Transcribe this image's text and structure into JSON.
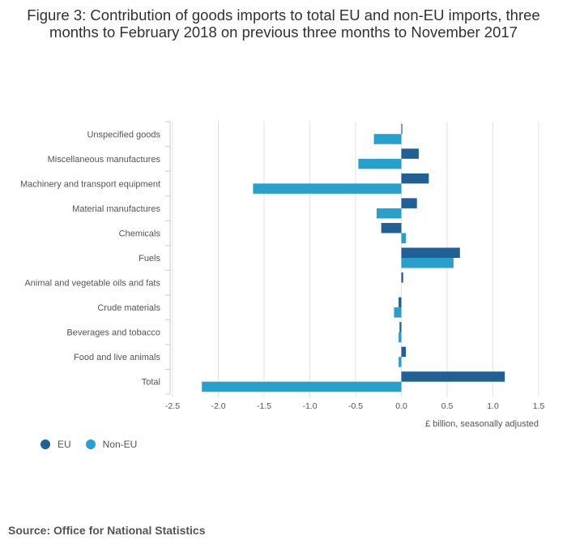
{
  "title": "Figure 3: Contribution of goods imports to total EU and non-EU imports, three months to February 2018 on previous three months to November 2017",
  "source": "Source: Office for National Statistics",
  "chart_data": {
    "type": "bar",
    "orientation": "horizontal",
    "categories": [
      "Unspecified goods",
      "Miscellaneous manufactures",
      "Machinery and transport equipment",
      "Material manufactures",
      "Chemicals",
      "Fuels",
      "Animal and vegetable oils and fats",
      "Crude materials",
      "Beverages and tobacco",
      "Food and live animals",
      "Total"
    ],
    "series": [
      {
        "name": "EU",
        "color": "#206095",
        "values": [
          0.01,
          0.19,
          0.3,
          0.17,
          -0.22,
          0.64,
          0.02,
          -0.03,
          -0.02,
          0.05,
          1.13
        ]
      },
      {
        "name": "Non-EU",
        "color": "#27a0cc",
        "values": [
          -0.3,
          -0.47,
          -1.62,
          -0.27,
          0.05,
          0.57,
          0.0,
          -0.08,
          -0.03,
          -0.03,
          -2.18
        ]
      }
    ],
    "xlim": [
      -2.5,
      1.5
    ],
    "xticks": [
      -2.5,
      -2.0,
      -1.5,
      -1.0,
      -0.5,
      0.0,
      0.5,
      1.0,
      1.5
    ],
    "xtick_labels": [
      "-2.5",
      "-2.0",
      "-1.5",
      "-1.0",
      "-0.5",
      "0.0",
      "0.5",
      "1.0",
      "1.5"
    ],
    "xlabel": "£ billion, seasonally adjusted",
    "grid": true,
    "legend_position": "bottom-left"
  }
}
